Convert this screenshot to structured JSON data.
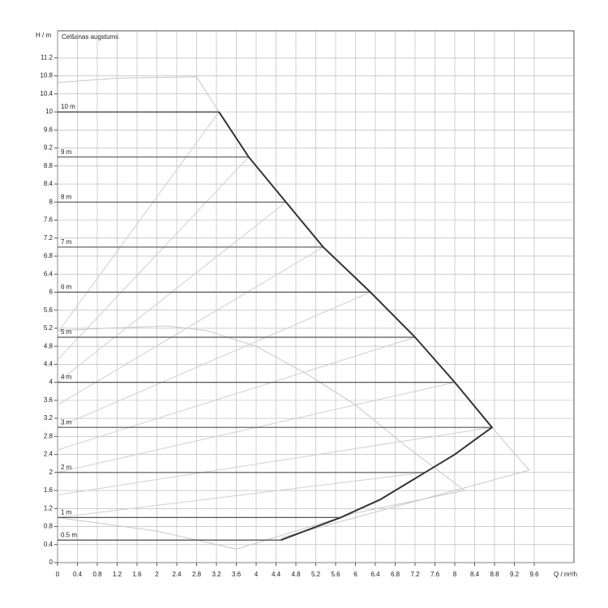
{
  "chart_data": {
    "type": "line",
    "title": "Celšanas augstums",
    "ylabel": "H / m",
    "xlabel": "Q / m³/h",
    "xlim": [
      0,
      10.4
    ],
    "ylim": [
      0,
      11.8
    ],
    "xticks": [
      0,
      0.4,
      0.8,
      1.2,
      1.6,
      2,
      2.4,
      2.8,
      3.2,
      3.6,
      4,
      4.4,
      4.8,
      5.2,
      5.6,
      6,
      6.4,
      6.8,
      7.2,
      7.6,
      8,
      8.4,
      8.8,
      9.2,
      9.6
    ],
    "yticks": [
      0,
      0.4,
      0.8,
      1.2,
      1.6,
      2,
      2.4,
      2.8,
      3.2,
      3.6,
      4,
      4.4,
      4.8,
      5.2,
      5.6,
      6,
      6.4,
      6.8,
      7.2,
      7.6,
      8,
      8.4,
      8.8,
      9.2,
      9.6,
      10,
      10.4,
      10.8,
      11.2
    ],
    "grid": true,
    "grid_color": "#b0b0b0",
    "series": [
      {
        "name": "10 m",
        "color": "#333333",
        "x": [
          0,
          3.25
        ],
        "values": [
          10,
          10
        ]
      },
      {
        "name": "9 m",
        "color": "#555555",
        "x": [
          0,
          3.85
        ],
        "values": [
          9,
          9
        ]
      },
      {
        "name": "8 m",
        "color": "#555555",
        "x": [
          0,
          4.6
        ],
        "values": [
          8,
          8
        ]
      },
      {
        "name": "7 m",
        "color": "#555555",
        "x": [
          0,
          5.35
        ],
        "values": [
          7,
          7
        ]
      },
      {
        "name": "6 m",
        "color": "#555555",
        "x": [
          0,
          6.3
        ],
        "values": [
          6,
          6
        ]
      },
      {
        "name": "5 m",
        "color": "#555555",
        "x": [
          0,
          7.2
        ],
        "values": [
          5,
          5
        ]
      },
      {
        "name": "4 m",
        "color": "#555555",
        "x": [
          0,
          8.0
        ],
        "values": [
          4,
          4
        ]
      },
      {
        "name": "3 m",
        "color": "#555555",
        "x": [
          0,
          8.75
        ],
        "values": [
          3,
          3
        ]
      },
      {
        "name": "2 m",
        "color": "#555555",
        "x": [
          0,
          7.4
        ],
        "values": [
          2,
          2
        ]
      },
      {
        "name": "1 m",
        "color": "#555555",
        "x": [
          0,
          5.7
        ],
        "values": [
          1,
          1
        ]
      },
      {
        "name": "0.5 m",
        "color": "#333333",
        "x": [
          0,
          4.5
        ],
        "values": [
          0.5,
          0.5
        ]
      }
    ],
    "envelope": {
      "color": "#333333",
      "x": [
        3.25,
        3.85,
        4.6,
        5.35,
        6.3,
        7.2,
        8.0,
        8.75,
        8.0,
        7.4,
        6.5,
        5.7,
        4.5
      ],
      "values": [
        10,
        9,
        8,
        7,
        6,
        5,
        4,
        3,
        2.4,
        2,
        1.4,
        1,
        0.5
      ]
    },
    "guides": [
      {
        "color": "#c8c8c8",
        "x": [
          0,
          1.2,
          2.8,
          3.25
        ],
        "values": [
          10.65,
          10.75,
          10.78,
          10
        ]
      },
      {
        "color": "#c8c8c8",
        "x": [
          8.75,
          9.5,
          4.5
        ],
        "values": [
          3,
          2.05,
          0.55
        ]
      },
      {
        "color": "#c8c8c8",
        "x": [
          0,
          1,
          2.2,
          3,
          4,
          5,
          6,
          7,
          8.2
        ],
        "values": [
          5.15,
          5.2,
          5.25,
          5.15,
          4.8,
          4.2,
          3.5,
          2.6,
          1.6
        ]
      },
      {
        "color": "#c8c8c8",
        "x": [
          0,
          2,
          3.6,
          6,
          8.2
        ],
        "values": [
          1,
          0.7,
          0.3,
          1.1,
          1.6
        ]
      },
      {
        "color": "#d0d0d0",
        "x": [
          0,
          3.25
        ],
        "values": [
          5.1,
          10
        ]
      },
      {
        "color": "#d0d0d0",
        "x": [
          0,
          3.85
        ],
        "values": [
          4.5,
          9
        ]
      },
      {
        "color": "#d0d0d0",
        "x": [
          0,
          4.6
        ],
        "values": [
          4.0,
          8
        ]
      },
      {
        "color": "#d0d0d0",
        "x": [
          0,
          5.35
        ],
        "values": [
          3.5,
          7
        ]
      },
      {
        "color": "#d0d0d0",
        "x": [
          0,
          6.3
        ],
        "values": [
          3.0,
          6
        ]
      },
      {
        "color": "#d0d0d0",
        "x": [
          0,
          7.2
        ],
        "values": [
          2.5,
          5
        ]
      },
      {
        "color": "#d0d0d0",
        "x": [
          0,
          8.0
        ],
        "values": [
          2.0,
          4
        ]
      },
      {
        "color": "#d0d0d0",
        "x": [
          0,
          8.75
        ],
        "values": [
          1.5,
          3
        ]
      },
      {
        "color": "#d0d0d0",
        "x": [
          0,
          7.4
        ],
        "values": [
          1.0,
          2
        ]
      }
    ]
  }
}
